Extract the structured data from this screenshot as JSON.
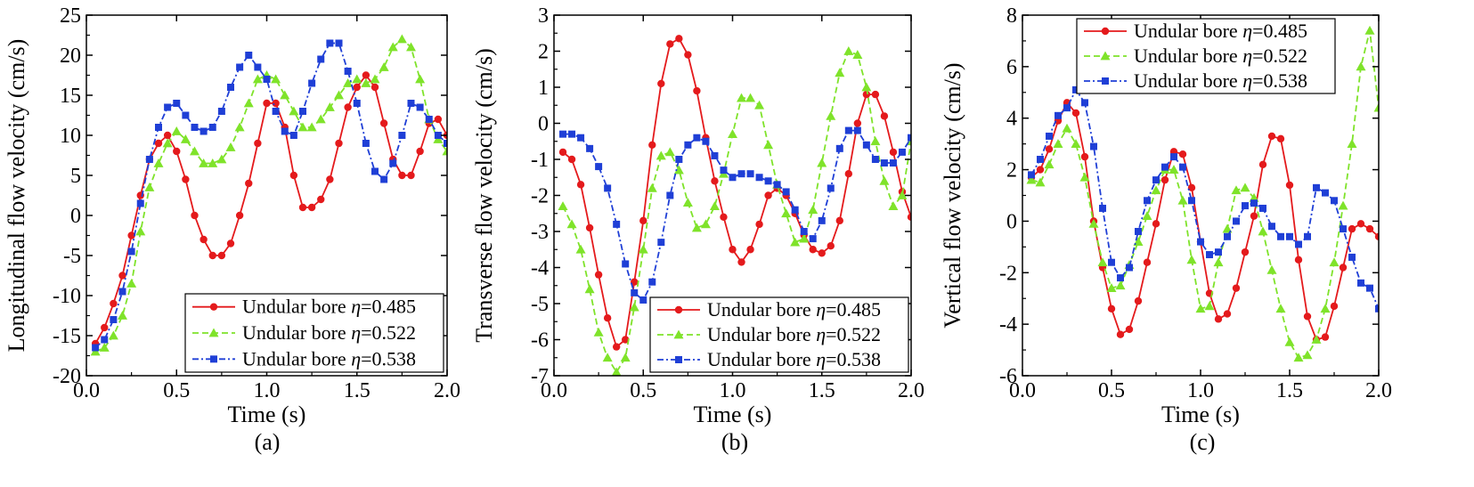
{
  "figure": {
    "panel_labels": [
      "(a)",
      "(b)",
      "(c)"
    ]
  },
  "series_styles": [
    {
      "color": "#e41a1c",
      "marker": "circle",
      "dash": "solid"
    },
    {
      "color": "#7fe32a",
      "marker": "triangle",
      "dash": "dashed"
    },
    {
      "color": "#1f3fd6",
      "marker": "square",
      "dash": "dashdot"
    }
  ],
  "chart_data": [
    {
      "type": "line",
      "xlabel": "Time (s)",
      "ylabel": "Longitudinal flow velocity (cm/s)",
      "xlim": [
        0,
        2.0
      ],
      "ylim": [
        -20,
        25
      ],
      "xticks": [
        "0.0",
        "0.5",
        "1.0",
        "1.5",
        "2.0"
      ],
      "yticks": [
        "-20",
        "-15",
        "-10",
        "-5",
        "0",
        "5",
        "10",
        "15",
        "20",
        "25"
      ],
      "legend_position": "bottom-right",
      "x": [
        0.05,
        0.1,
        0.15,
        0.2,
        0.25,
        0.3,
        0.35,
        0.4,
        0.45,
        0.5,
        0.55,
        0.6,
        0.65,
        0.7,
        0.75,
        0.8,
        0.85,
        0.9,
        0.95,
        1.0,
        1.05,
        1.1,
        1.15,
        1.2,
        1.25,
        1.3,
        1.35,
        1.4,
        1.45,
        1.5,
        1.55,
        1.6,
        1.65,
        1.7,
        1.75,
        1.8,
        1.85,
        1.9,
        1.95,
        2.0
      ],
      "series": [
        {
          "name": "Undular bore η=0.485",
          "values": [
            -16,
            -14,
            -11,
            -7.5,
            -2.5,
            2.5,
            7,
            9,
            10,
            8,
            4.5,
            0,
            -3,
            -5,
            -5,
            -3.5,
            0,
            4,
            9,
            14,
            14,
            11,
            5,
            1,
            1,
            2,
            4.5,
            9,
            13.5,
            16,
            17.5,
            16,
            11.5,
            7,
            5,
            5,
            8,
            11.5,
            12,
            10
          ]
        },
        {
          "name": "Undular bore η=0.522",
          "values": [
            -17,
            -16.5,
            -15,
            -12.5,
            -8.5,
            -2,
            3.5,
            6.5,
            9,
            10.5,
            9.5,
            8,
            6.5,
            6.5,
            7,
            8.5,
            11,
            14,
            17,
            17.5,
            17,
            15,
            13,
            11,
            11,
            12,
            13.5,
            15,
            16.5,
            17,
            16.5,
            17,
            18.5,
            21,
            22,
            21,
            17,
            12,
            9.5,
            8
          ]
        },
        {
          "name": "Undular bore η=0.538",
          "values": [
            -16.5,
            -15.5,
            -13,
            -9.5,
            -4.5,
            1.5,
            7,
            11,
            13.5,
            14,
            12.5,
            11,
            10.5,
            11,
            13,
            16,
            18.5,
            20,
            18.5,
            17,
            13,
            10.5,
            10,
            13,
            16.5,
            19.5,
            21.5,
            21.5,
            18,
            14,
            9,
            5.5,
            4.5,
            6.5,
            10,
            14,
            13.5,
            12,
            10,
            9
          ]
        }
      ]
    },
    {
      "type": "line",
      "xlabel": "Time (s)",
      "ylabel": "Transverse flow velocity (cm/s)",
      "xlim": [
        0,
        2.0
      ],
      "ylim": [
        -7,
        3
      ],
      "xticks": [
        "0.0",
        "0.5",
        "1.0",
        "1.5",
        "2.0"
      ],
      "yticks": [
        "-7",
        "-6",
        "-5",
        "-4",
        "-3",
        "-2",
        "-1",
        "0",
        "1",
        "2",
        "3"
      ],
      "legend_position": "bottom-right",
      "x": [
        0.05,
        0.1,
        0.15,
        0.2,
        0.25,
        0.3,
        0.35,
        0.4,
        0.45,
        0.5,
        0.55,
        0.6,
        0.65,
        0.7,
        0.75,
        0.8,
        0.85,
        0.9,
        0.95,
        1.0,
        1.05,
        1.1,
        1.15,
        1.2,
        1.25,
        1.3,
        1.35,
        1.4,
        1.45,
        1.5,
        1.55,
        1.6,
        1.65,
        1.7,
        1.75,
        1.8,
        1.85,
        1.9,
        1.95,
        2.0
      ],
      "series": [
        {
          "name": "Undular bore η=0.485",
          "values": [
            -0.8,
            -1.0,
            -1.7,
            -2.9,
            -4.2,
            -5.4,
            -6.2,
            -6.0,
            -4.4,
            -2.7,
            -0.6,
            1.1,
            2.2,
            2.35,
            1.9,
            0.9,
            -0.4,
            -1.6,
            -2.6,
            -3.5,
            -3.85,
            -3.5,
            -2.8,
            -2.0,
            -1.8,
            -2.0,
            -2.5,
            -3.1,
            -3.5,
            -3.6,
            -3.4,
            -2.7,
            -1.4,
            0.0,
            0.8,
            0.8,
            0.2,
            -0.8,
            -1.9,
            -2.6
          ]
        },
        {
          "name": "Undular bore η=0.522",
          "values": [
            -2.3,
            -2.8,
            -3.5,
            -4.6,
            -5.8,
            -6.5,
            -6.9,
            -6.5,
            -5.1,
            -3.5,
            -1.8,
            -0.9,
            -0.8,
            -1.3,
            -2.2,
            -2.9,
            -2.8,
            -2.3,
            -1.4,
            -0.3,
            0.7,
            0.7,
            0.5,
            -0.6,
            -1.7,
            -2.5,
            -3.3,
            -3.2,
            -2.4,
            -1.1,
            0.2,
            1.4,
            2.0,
            1.9,
            1.0,
            -0.5,
            -1.6,
            -2.3,
            -2.0,
            -0.5
          ]
        },
        {
          "name": "Undular bore η=0.538",
          "values": [
            -0.3,
            -0.3,
            -0.4,
            -0.7,
            -1.2,
            -1.8,
            -2.8,
            -3.9,
            -4.7,
            -4.9,
            -4.4,
            -3.3,
            -2.0,
            -1.0,
            -0.6,
            -0.4,
            -0.5,
            -0.9,
            -1.3,
            -1.5,
            -1.4,
            -1.4,
            -1.5,
            -1.6,
            -1.7,
            -1.9,
            -2.4,
            -3.0,
            -3.2,
            -2.7,
            -1.8,
            -0.7,
            -0.2,
            -0.2,
            -0.6,
            -1.0,
            -1.1,
            -1.1,
            -0.8,
            -0.4
          ]
        }
      ]
    },
    {
      "type": "line",
      "xlabel": "Time (s)",
      "ylabel": "Vertical flow velocity (cm/s)",
      "xlim": [
        0,
        2.0
      ],
      "ylim": [
        -6,
        8
      ],
      "xticks": [
        "0.0",
        "0.5",
        "1.0",
        "1.5",
        "2.0"
      ],
      "yticks": [
        "-6",
        "-4",
        "-2",
        "0",
        "2",
        "4",
        "6",
        "8"
      ],
      "legend_position": "top",
      "x": [
        0.05,
        0.1,
        0.15,
        0.2,
        0.25,
        0.3,
        0.35,
        0.4,
        0.45,
        0.5,
        0.55,
        0.6,
        0.65,
        0.7,
        0.75,
        0.8,
        0.85,
        0.9,
        0.95,
        1.0,
        1.05,
        1.1,
        1.15,
        1.2,
        1.25,
        1.3,
        1.35,
        1.4,
        1.45,
        1.5,
        1.55,
        1.6,
        1.65,
        1.7,
        1.75,
        1.8,
        1.85,
        1.9,
        1.95,
        2.0
      ],
      "series": [
        {
          "name": "Undular bore η=0.485",
          "values": [
            1.7,
            2.0,
            2.8,
            3.9,
            4.6,
            4.2,
            2.5,
            0.0,
            -1.8,
            -3.4,
            -4.4,
            -4.2,
            -3.1,
            -1.6,
            -0.1,
            1.6,
            2.7,
            2.6,
            1.3,
            -0.8,
            -2.8,
            -3.8,
            -3.6,
            -2.6,
            -1.2,
            0.2,
            2.2,
            3.3,
            3.2,
            1.4,
            -1.5,
            -3.7,
            -4.6,
            -4.5,
            -3.3,
            -1.8,
            -0.3,
            -0.1,
            -0.3,
            -0.6
          ]
        },
        {
          "name": "Undular bore η=0.522",
          "values": [
            1.6,
            1.5,
            2.2,
            3.0,
            3.6,
            3.0,
            1.7,
            -0.1,
            -1.6,
            -2.6,
            -2.5,
            -1.7,
            -0.8,
            0.2,
            1.2,
            2.0,
            2.0,
            0.8,
            -1.5,
            -3.4,
            -3.3,
            -1.6,
            -0.3,
            1.2,
            1.3,
            0.9,
            -0.4,
            -1.9,
            -3.4,
            -4.7,
            -5.3,
            -5.2,
            -4.6,
            -3.4,
            -1.6,
            0.6,
            3.0,
            6.0,
            7.4,
            4.4
          ]
        },
        {
          "name": "Undular bore η=0.538",
          "values": [
            1.8,
            2.4,
            3.3,
            4.1,
            4.4,
            5.1,
            4.6,
            2.9,
            0.5,
            -1.6,
            -2.2,
            -1.8,
            -0.4,
            0.8,
            1.6,
            2.1,
            2.5,
            2.1,
            0.8,
            -0.8,
            -1.3,
            -1.2,
            -0.6,
            0.0,
            0.6,
            0.7,
            0.5,
            -0.2,
            -0.6,
            -0.6,
            -0.9,
            -0.6,
            1.3,
            1.1,
            0.8,
            -0.3,
            -1.4,
            -2.4,
            -2.6,
            -3.4
          ]
        }
      ]
    }
  ]
}
